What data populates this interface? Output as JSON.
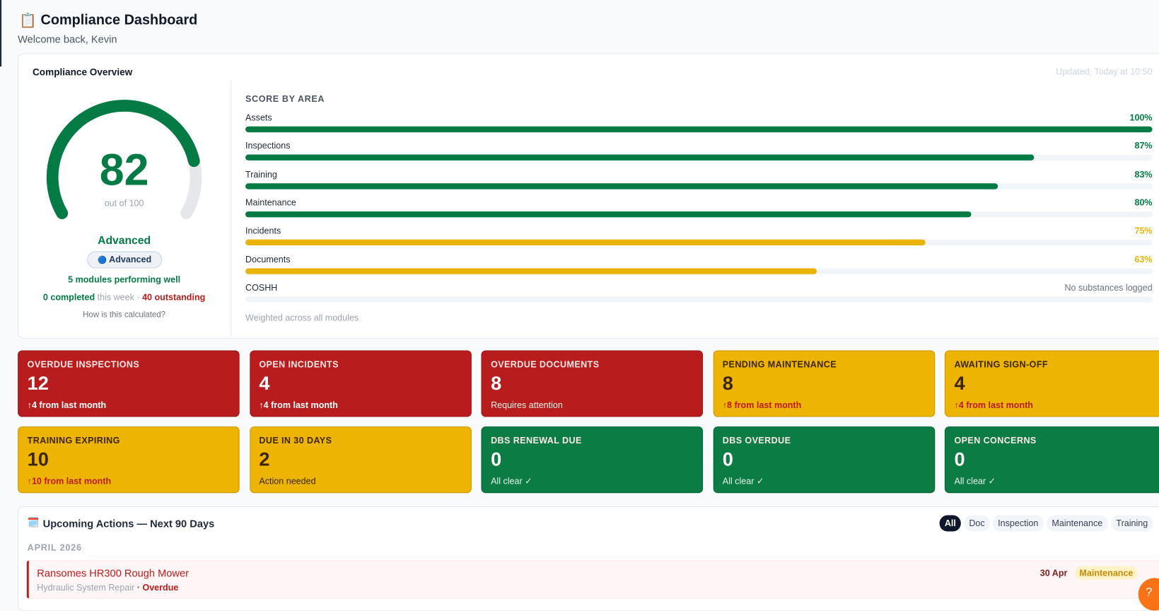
{
  "header": {
    "icon": "📋",
    "title": "Compliance Dashboard",
    "subtitle": "Welcome back, Kevin"
  },
  "overview": {
    "title": "Compliance Overview",
    "updated": "Updated: Today at 10:50",
    "score": 82,
    "out_of": "out of",
    "score_max": 100,
    "level": "Advanced",
    "badge_icon": "🔵",
    "badge": "Advanced",
    "modules_note": "5 modules performing well",
    "completed": "0 completed",
    "this_week": "this week ·",
    "outstanding": "40 outstanding",
    "how": "How is this calculated?",
    "areas_title": "SCORE BY AREA",
    "areas": [
      {
        "name": "Assets",
        "value": 100,
        "label": "100%",
        "color": "#047a45"
      },
      {
        "name": "Inspections",
        "value": 87,
        "label": "87%",
        "color": "#047a45"
      },
      {
        "name": "Training",
        "value": 83,
        "label": "83%",
        "color": "#047a45"
      },
      {
        "name": "Maintenance",
        "value": 80,
        "label": "80%",
        "color": "#047a45"
      },
      {
        "name": "Incidents",
        "value": 75,
        "label": "75%",
        "color": "#eab308"
      },
      {
        "name": "Documents",
        "value": 63,
        "label": "63%",
        "color": "#eab308"
      },
      {
        "name": "COSHH",
        "value": null,
        "label": "No substances logged",
        "color": "#9ca3af"
      }
    ],
    "footnote": "Weighted across all modules"
  },
  "stats": [
    {
      "title": "OVERDUE INSPECTIONS",
      "value": 12,
      "note": "↑4 from last month",
      "tone": "red",
      "note_style": "trend"
    },
    {
      "title": "OPEN INCIDENTS",
      "value": 4,
      "note": "↑4 from last month",
      "tone": "red",
      "note_style": "trend"
    },
    {
      "title": "OVERDUE DOCUMENTS",
      "value": 8,
      "note": "Requires attention",
      "tone": "red",
      "note_style": "plain"
    },
    {
      "title": "PENDING MAINTENANCE",
      "value": 8,
      "note": "↑8 from last month",
      "tone": "yellow",
      "note_style": "trend"
    },
    {
      "title": "AWAITING SIGN-OFF",
      "value": 4,
      "note": "↑4 from last month",
      "tone": "yellow",
      "note_style": "trend"
    },
    {
      "title": "TRAINING EXPIRING",
      "value": 10,
      "note": "↑10 from last month",
      "tone": "yellow",
      "note_style": "trend"
    },
    {
      "title": "DUE IN 30 DAYS",
      "value": 2,
      "note": "Action needed",
      "tone": "yellow",
      "note_style": "plain"
    },
    {
      "title": "DBS RENEWAL DUE",
      "value": 0,
      "note": "All clear ✓",
      "tone": "green",
      "note_style": "plain"
    },
    {
      "title": "DBS OVERDUE",
      "value": 0,
      "note": "All clear ✓",
      "tone": "green",
      "note_style": "plain"
    },
    {
      "title": "OPEN CONCERNS",
      "value": 0,
      "note": "All clear ✓",
      "tone": "green",
      "note_style": "plain"
    }
  ],
  "upcoming": {
    "icon": "🗓️",
    "title": "Upcoming Actions — Next 90 Days",
    "filters": [
      {
        "label": "All",
        "active": true
      },
      {
        "label": "Doc",
        "active": false
      },
      {
        "label": "Inspection",
        "active": false
      },
      {
        "label": "Maintenance",
        "active": false
      },
      {
        "label": "Training",
        "active": false
      }
    ],
    "groups": [
      {
        "month": "APRIL 2026",
        "items": [
          {
            "title": "Ransomes HR300 Rough Mower",
            "detail": "Hydraulic System Repair",
            "status": "· Overdue",
            "date": "30 Apr",
            "tag": "Maintenance"
          }
        ]
      }
    ]
  }
}
